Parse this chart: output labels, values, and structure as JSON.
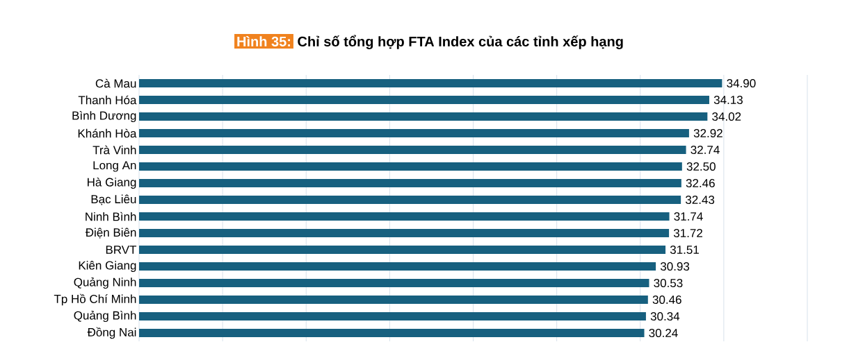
{
  "chart_data": {
    "type": "bar",
    "orientation": "horizontal",
    "title": "Chỉ số tổng hợp FTA Index của các tỉnh xếp hạng",
    "annotations": [
      "Hình 35:"
    ],
    "categories": [
      "Cà Mau",
      "Thanh Hóa",
      "Bình Dương",
      "Khánh Hòa",
      "Trà Vinh",
      "Long An",
      "Hà Giang",
      "Bạc Liêu",
      "Ninh Bình",
      "Điện Biên",
      "BRVT",
      "Kiên Giang",
      "Quảng Ninh",
      "Tp Hồ Chí Minh",
      "Quảng Bình",
      "Đồng Nai"
    ],
    "values": [
      34.9,
      34.13,
      34.02,
      32.92,
      32.74,
      32.5,
      32.46,
      32.43,
      31.74,
      31.72,
      31.51,
      30.93,
      30.53,
      30.46,
      30.34,
      30.24
    ],
    "color": "#17607f",
    "value_labels": [
      "34.90",
      "34.13",
      "34.02",
      "32.92",
      "32.74",
      "32.50",
      "32.46",
      "32.43",
      "31.74",
      "31.72",
      "31.51",
      "30.93",
      "30.53",
      "30.46",
      "30.34",
      "30.24"
    ],
    "xlim": [
      0,
      40
    ],
    "xticks": [
      {
        "value": 0,
        "label": null
      },
      {
        "value": 5,
        "label": null
      },
      {
        "value": 10,
        "label": null
      },
      {
        "value": 15,
        "label": null
      },
      {
        "value": 20,
        "label": null
      },
      {
        "value": 25,
        "label": null
      },
      {
        "value": 30,
        "label": null
      },
      {
        "value": 35,
        "label": null
      },
      {
        "value": 40,
        "label": null
      }
    ],
    "grid": "x",
    "tick_labels": "y"
  }
}
